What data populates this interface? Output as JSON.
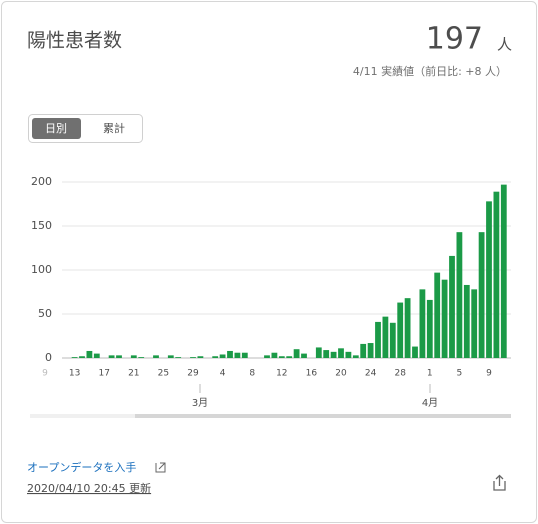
{
  "header": {
    "title": "陽性患者数",
    "value": 197,
    "unit": "人",
    "note": "4/11 実績値（前日比: +8 人）"
  },
  "tabs": [
    "日別",
    "累計"
  ],
  "chart_data": {
    "type": "bar",
    "categories": [
      "9",
      null,
      null,
      null,
      "13",
      null,
      null,
      null,
      "17",
      null,
      null,
      null,
      "21",
      null,
      null,
      null,
      "25",
      null,
      null,
      null,
      "29",
      null,
      null,
      null,
      "4",
      null,
      null,
      null,
      "8",
      null,
      null,
      null,
      "12",
      null,
      null,
      null,
      "16",
      null,
      null,
      null,
      "20",
      null,
      null,
      null,
      "24",
      null,
      null,
      null,
      "28",
      null,
      null,
      null,
      "1",
      null,
      null,
      null,
      "5",
      null,
      null,
      null,
      "9",
      null,
      null
    ],
    "values": [
      0,
      0,
      0,
      0,
      1,
      2,
      8,
      5,
      0,
      3,
      3,
      0,
      3,
      1,
      0,
      3,
      0,
      3,
      1,
      0,
      1,
      2,
      0,
      2,
      4,
      8,
      6,
      6,
      0,
      0,
      3,
      6,
      2,
      2,
      10,
      5,
      0,
      12,
      9,
      7,
      11,
      7,
      3,
      16,
      17,
      41,
      47,
      40,
      63,
      68,
      13,
      78,
      66,
      97,
      89,
      116,
      143,
      83,
      78,
      143,
      178,
      189,
      197
    ],
    "color": "#1b9a47",
    "ylim": [
      0,
      200
    ],
    "yticks": [
      0,
      50,
      100,
      150,
      200
    ],
    "grid": true,
    "month_labels": [
      "3月",
      "4月"
    ]
  },
  "footer": {
    "link": "オープンデータを入手",
    "updated": "2020/04/10 20:45 更新"
  }
}
